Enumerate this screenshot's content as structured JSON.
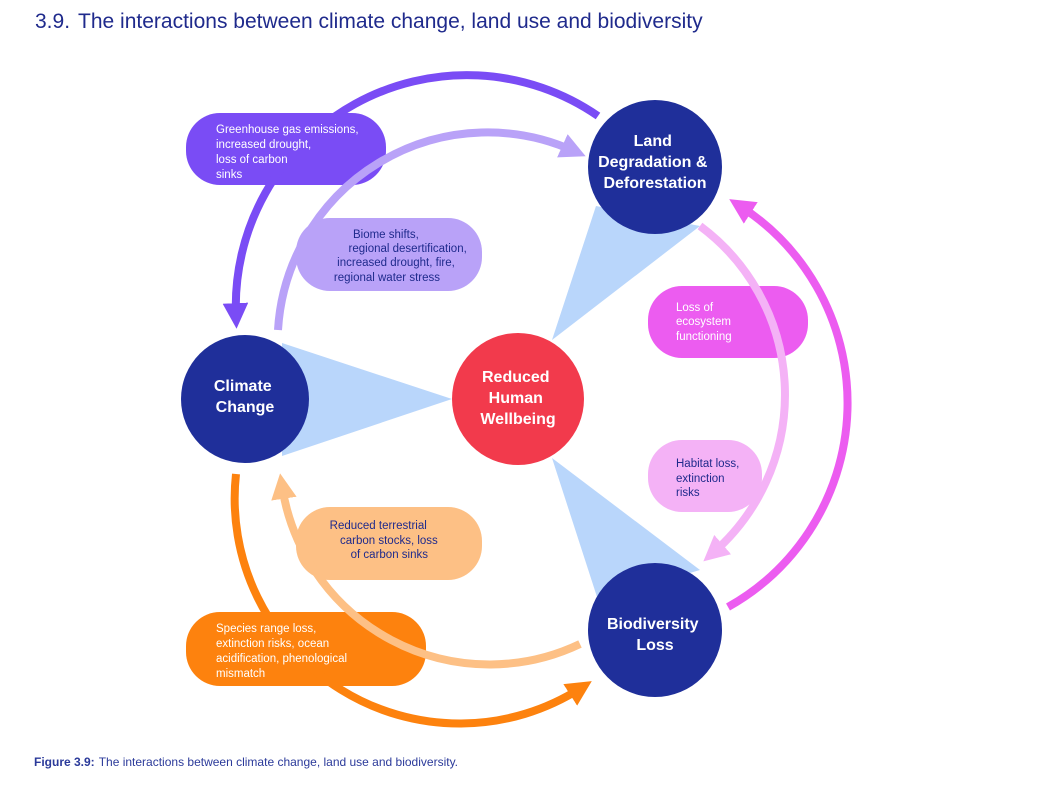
{
  "heading": {
    "number": "3.9.",
    "title": "The interactions between climate change, land use and biodiversity"
  },
  "nodes": {
    "climate": {
      "line1": "Climate",
      "line2": "Change"
    },
    "land": {
      "line1": "Land",
      "line2": "Degradation &",
      "line3": "Deforestation"
    },
    "biodiversity": {
      "line1": "Biodiversity",
      "line2": "Loss"
    },
    "wellbeing": {
      "line1": "Reduced",
      "line2": "Human",
      "line3": "Wellbeing"
    }
  },
  "boxes": {
    "ghg": [
      "Greenhouse gas emissions,",
      "increased drought,",
      "loss of carbon",
      "sinks"
    ],
    "biome": [
      "Biome shifts,",
      "regional desertification,",
      "increased drought, fire,",
      "regional water stress"
    ],
    "ecosystem": [
      "Loss of",
      "ecosystem",
      "functioning"
    ],
    "habitat": [
      "Habitat loss,",
      "extinction",
      "risks"
    ],
    "carbon": [
      "Reduced terrestrial",
      "carbon stocks, loss",
      "of carbon sinks"
    ],
    "species": [
      "Species range loss,",
      "extinction risks, ocean",
      "acidification, phenological",
      "mismatch"
    ]
  },
  "colors": {
    "node": "#1f2f9a",
    "center": "#f23a4c",
    "wedge": "#b9d6fb",
    "purple_dark": "#7a4cf5",
    "purple_light": "#b9a2f8",
    "pink_dark": "#ec5cf0",
    "pink_light": "#f4b2f6",
    "orange_dark": "#fd820e",
    "orange_light": "#fdc085"
  },
  "caption": {
    "label": "Figure 3.9:",
    "text": "The interactions between climate change, land use and biodiversity."
  }
}
